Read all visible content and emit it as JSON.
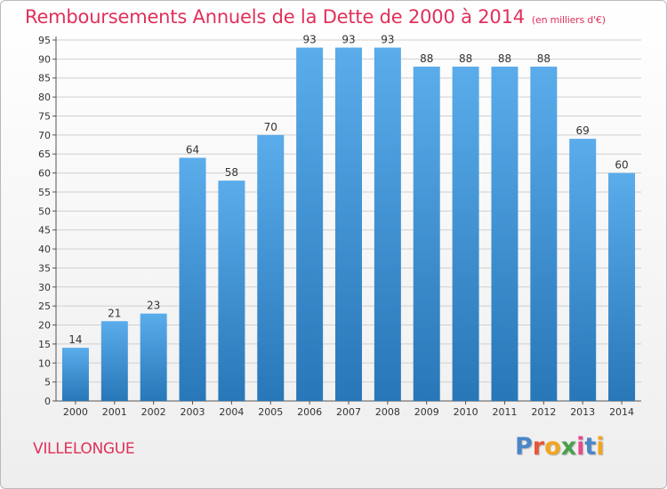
{
  "title": "Remboursements Annuels de la Dette de 2000 à 2014",
  "subtitle": "(en milliers d'€)",
  "location": "VILLELONGUE",
  "brand": {
    "text": "Proxiti",
    "letter_colors": [
      "#4a86c8",
      "#e8553a",
      "#f2a51f",
      "#4aa04a",
      "#e84a8a",
      "#4a86c8",
      "#f2a51f"
    ]
  },
  "colors": {
    "title": "#e0305a",
    "bar_top": "#5aaceb",
    "bar_bottom": "#2877b8",
    "grid": "#cfcfcf",
    "axis": "#555555",
    "text": "#333333"
  },
  "chart_data": {
    "type": "bar",
    "title": "Remboursements Annuels de la Dette de 2000 à 2014",
    "subtitle": "(en milliers d'€)",
    "xlabel": "",
    "ylabel": "",
    "categories": [
      "2000",
      "2001",
      "2002",
      "2003",
      "2004",
      "2005",
      "2006",
      "2007",
      "2008",
      "2009",
      "2010",
      "2011",
      "2012",
      "2013",
      "2014"
    ],
    "values": [
      14,
      21,
      23,
      64,
      58,
      70,
      93,
      93,
      93,
      88,
      88,
      88,
      88,
      69,
      60
    ],
    "ylim": [
      0,
      95
    ],
    "yticks": [
      0,
      5,
      10,
      15,
      20,
      25,
      30,
      35,
      40,
      45,
      50,
      55,
      60,
      65,
      70,
      75,
      80,
      85,
      90,
      95
    ],
    "grid": true,
    "data_labels": true
  }
}
